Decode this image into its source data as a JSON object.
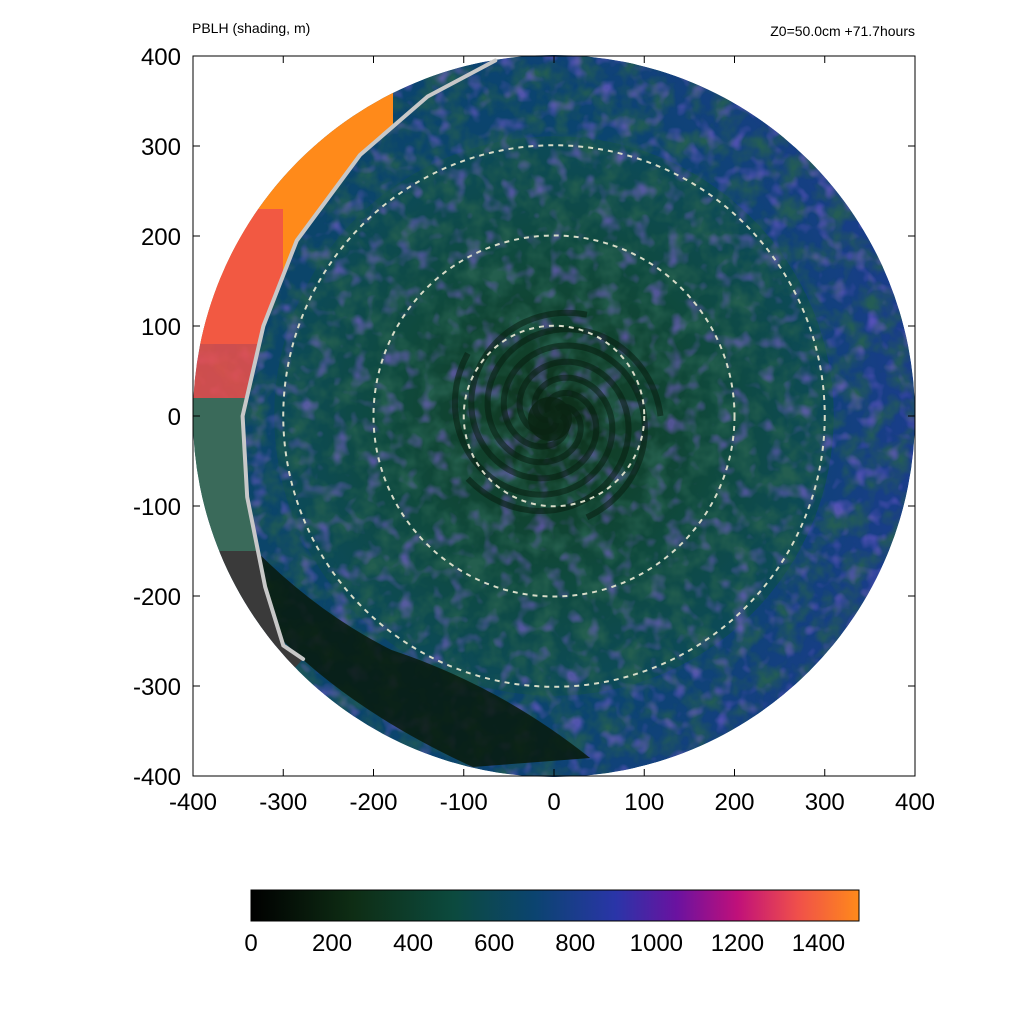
{
  "header": {
    "title_left": "PBLH (shading, m)",
    "title_right": "Z0=50.0cm  +71.7hours"
  },
  "chart_data": {
    "type": "heatmap",
    "title": "PBLH (shading, m)",
    "annotation": "Z0=50.0cm  +71.7hours",
    "xlim": [
      -400,
      400
    ],
    "ylim": [
      -400,
      400
    ],
    "x_ticks": [
      -400,
      -300,
      -200,
      -100,
      0,
      100,
      200,
      300,
      400
    ],
    "y_ticks": [
      -400,
      -300,
      -200,
      -100,
      0,
      100,
      200,
      300,
      400
    ],
    "x_tick_labels": [
      "-400",
      "-300",
      "-200",
      "-100",
      "0",
      "100",
      "200",
      "300",
      "400"
    ],
    "y_tick_labels": [
      "-400",
      "-300",
      "-200",
      "-100",
      "0",
      "100",
      "200",
      "300",
      "400"
    ],
    "domain_radius": 400,
    "range_rings": [
      100,
      200,
      300
    ],
    "colorbar": {
      "min": 0,
      "max": 1500,
      "ticks": [
        0,
        200,
        400,
        600,
        800,
        1000,
        1200,
        1400
      ],
      "tick_labels": [
        "0",
        "200",
        "400",
        "600",
        "800",
        "1000",
        "1200",
        "1400"
      ],
      "stops": [
        {
          "value": 0,
          "color": "#000000"
        },
        {
          "value": 250,
          "color": "#0e2d14"
        },
        {
          "value": 500,
          "color": "#0c4a3e"
        },
        {
          "value": 700,
          "color": "#0b4470"
        },
        {
          "value": 900,
          "color": "#2a35a8"
        },
        {
          "value": 1050,
          "color": "#6a12a0"
        },
        {
          "value": 1200,
          "color": "#c0107a"
        },
        {
          "value": 1350,
          "color": "#f0504a"
        },
        {
          "value": 1500,
          "color": "#ff8a1a"
        }
      ]
    },
    "field_summary": [
      {
        "region": "eye",
        "center": [
          0,
          0
        ],
        "value": 300
      },
      {
        "region": "inner core (r < 100)",
        "value": 400
      },
      {
        "region": "north-west outer band",
        "value": 1350
      },
      {
        "region": "south-west outer band",
        "value": 150
      },
      {
        "region": "east outer region",
        "value": 800
      }
    ],
    "colors": {
      "ring": "#d8dcc8",
      "boundary": "#c8c8c8"
    }
  }
}
